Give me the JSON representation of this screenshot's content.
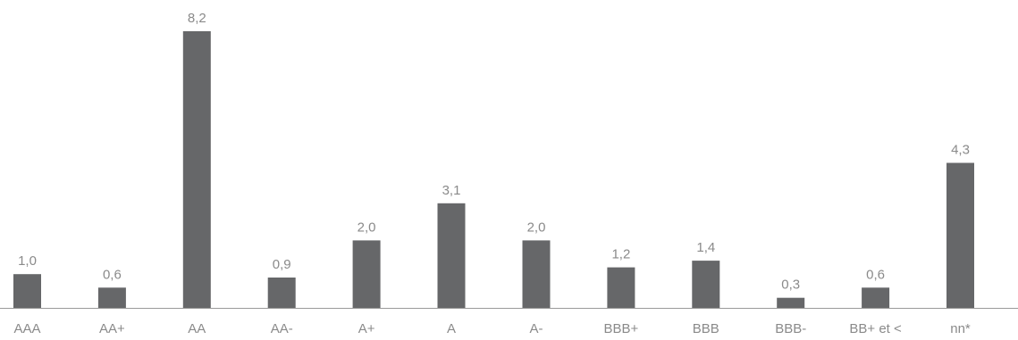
{
  "chart_data": {
    "type": "bar",
    "categories": [
      "AAA",
      "AA+",
      "AA",
      "AA-",
      "A+",
      "A",
      "A-",
      "BBB+",
      "BBB",
      "BBB-",
      "BB+ et <",
      "nn*"
    ],
    "values": [
      1.0,
      0.6,
      8.2,
      0.9,
      2.0,
      3.1,
      2.0,
      1.2,
      1.4,
      0.3,
      0.6,
      4.3
    ],
    "value_labels": [
      "1,0",
      "0,6",
      "8,2",
      "0,9",
      "2,0",
      "3,1",
      "2,0",
      "1,2",
      "1,4",
      "0,3",
      "0,6",
      "4,3"
    ],
    "ylim": [
      0,
      9.0
    ],
    "grid": false,
    "legend": "none",
    "bar_color": "#666769",
    "axis_color": "#999999",
    "label_color": "#8a8a8a"
  }
}
